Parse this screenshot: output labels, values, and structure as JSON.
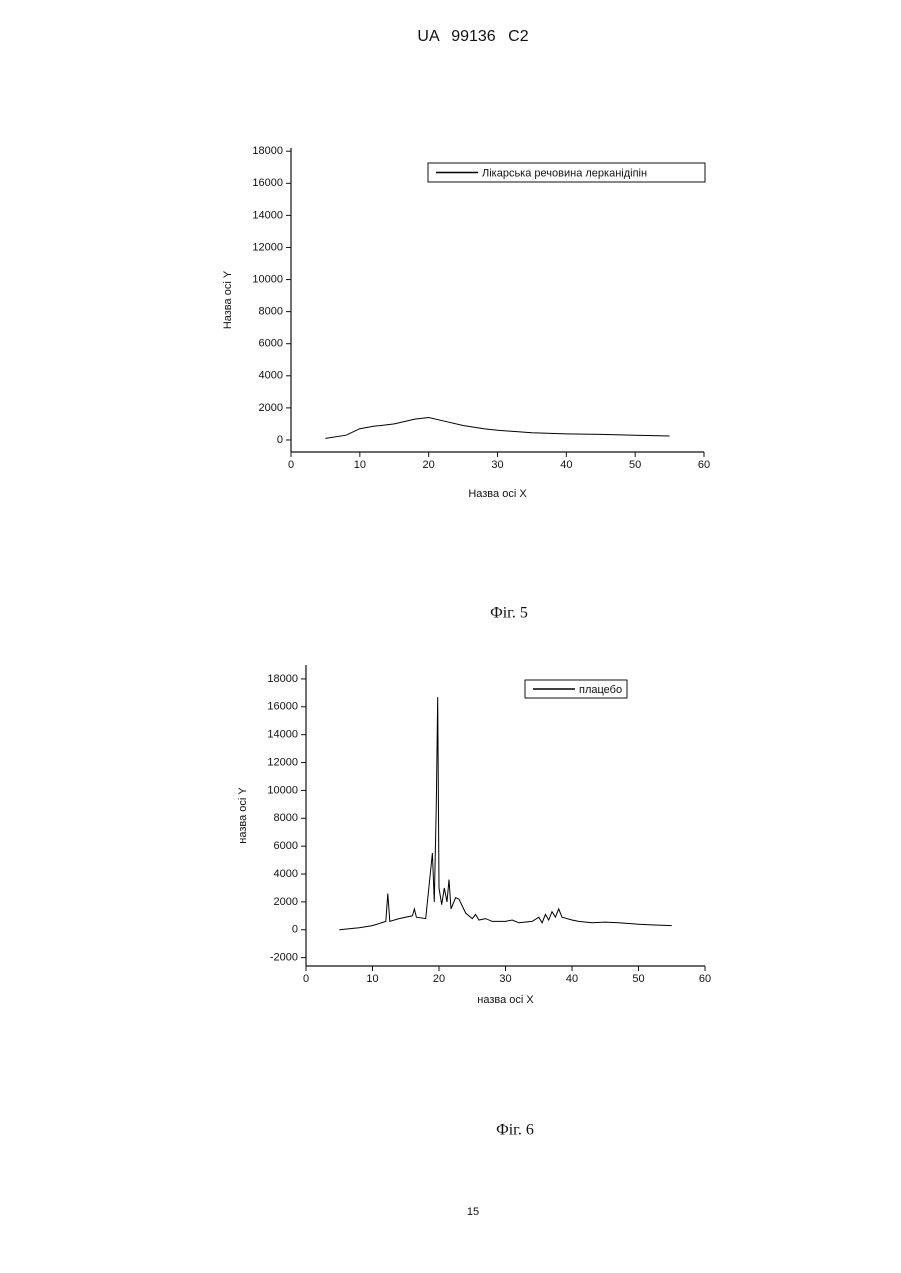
{
  "header": "UA 99136 C2",
  "chart_data": [
    {
      "type": "line",
      "x_label": "Назва осі X",
      "y_label": "Назва осі Y",
      "xlim": [
        0,
        60
      ],
      "xticks": [
        0,
        10,
        20,
        30,
        40,
        50,
        60
      ],
      "ylim": [
        -750,
        18200
      ],
      "yticks": [
        0,
        2000,
        4000,
        6000,
        8000,
        10000,
        12000,
        14000,
        16000,
        18000
      ],
      "legend": "top-right",
      "x": [
        5,
        8,
        10,
        12,
        15,
        18,
        20,
        22,
        25,
        28,
        30,
        35,
        40,
        45,
        50,
        55
      ],
      "series": [
        {
          "name": "Лікарська речовина лерканідіпін",
          "color": "#000000",
          "values": [
            100,
            300,
            700,
            850,
            1000,
            1300,
            1400,
            1200,
            900,
            700,
            600,
            450,
            380,
            350,
            300,
            250
          ]
        }
      ]
    },
    {
      "type": "line",
      "x_label": "назва осі X",
      "y_label": "назва осі Y",
      "xlim": [
        0,
        60
      ],
      "xticks": [
        0,
        10,
        20,
        30,
        40,
        50,
        60
      ],
      "ylim": [
        -2600,
        19000
      ],
      "yticks": [
        -2000,
        0,
        2000,
        4000,
        6000,
        8000,
        10000,
        12000,
        14000,
        16000,
        18000
      ],
      "legend": "top-right",
      "x": [
        5,
        8,
        10,
        12,
        12.3,
        12.6,
        14,
        16,
        16.3,
        16.6,
        18,
        19,
        19.3,
        19.6,
        19.8,
        20,
        20.4,
        20.8,
        21.2,
        21.5,
        21.8,
        22.5,
        23,
        24,
        25,
        25.5,
        26,
        27,
        28,
        30,
        31,
        32,
        34,
        35,
        35.5,
        36,
        36.5,
        37,
        37.5,
        38,
        38.5,
        40,
        41,
        43,
        45,
        47,
        50,
        52,
        55
      ],
      "series": [
        {
          "name": "плацебо",
          "color": "#000000",
          "values": [
            0,
            150,
            300,
            600,
            2600,
            600,
            800,
            1000,
            1500,
            900,
            800,
            5500,
            2000,
            9000,
            16700,
            3000,
            1800,
            3000,
            2000,
            3600,
            1500,
            2300,
            2200,
            1200,
            800,
            1100,
            700,
            800,
            600,
            600,
            700,
            500,
            600,
            900,
            500,
            1100,
            700,
            1300,
            900,
            1500,
            900,
            700,
            600,
            500,
            550,
            500,
            400,
            350,
            300
          ]
        }
      ]
    }
  ],
  "captions": [
    "Фіг. 5",
    "Фіг. 6"
  ],
  "page_number": "15"
}
